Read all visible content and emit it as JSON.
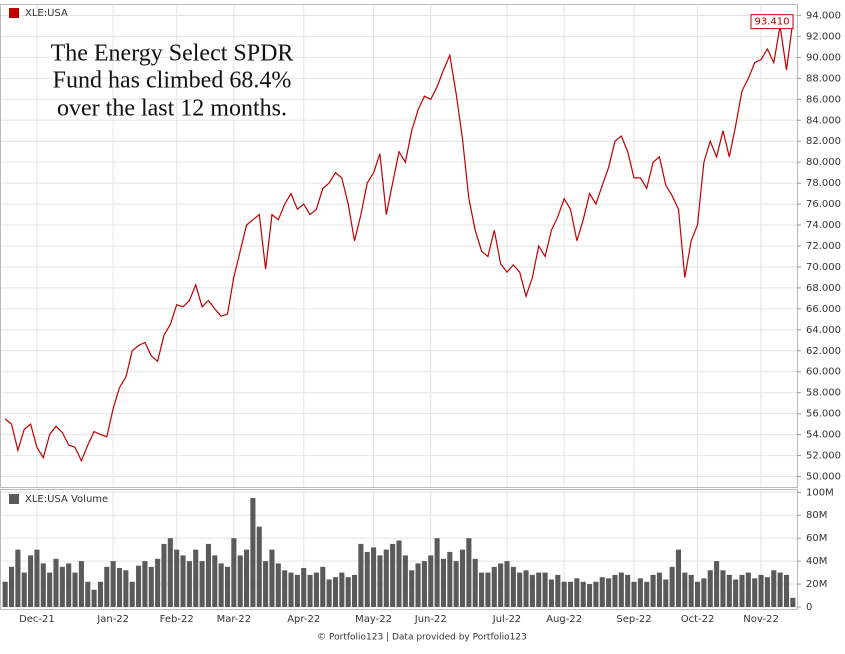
{
  "chart_data": [
    {
      "type": "line",
      "legend": "XLE:USA",
      "annotation": [
        "The Energy Select SPDR",
        "Fund has climbed 68.4%",
        "over the last 12 months."
      ],
      "series": [
        {
          "name": "XLE:USA",
          "color": "#c00000",
          "values": [
            55.5,
            55,
            52.5,
            54.5,
            55,
            52.8,
            51.8,
            54,
            54.8,
            54.2,
            53,
            52.8,
            51.5,
            53,
            54.3,
            54,
            53.8,
            56.5,
            58.5,
            59.5,
            62,
            62.5,
            62.8,
            61.5,
            61,
            63.5,
            64.5,
            66.4,
            66.2,
            66.8,
            68.3,
            66.2,
            66.8,
            66,
            65.3,
            65.5,
            69,
            71.5,
            74,
            74.5,
            75,
            69.8,
            75,
            74.5,
            76,
            77,
            75.5,
            76,
            75,
            75.5,
            77.5,
            78,
            79,
            78.5,
            76,
            72.5,
            75,
            78,
            79,
            80.8,
            75,
            78,
            81,
            80,
            83,
            85,
            86.3,
            86,
            87.2,
            88.8,
            90.2,
            86.5,
            82.2,
            76.5,
            73.5,
            71.5,
            71,
            73.5,
            70.3,
            69.5,
            70.2,
            69.5,
            67.2,
            69,
            72,
            71,
            73.5,
            74.8,
            76.5,
            75.5,
            72.5,
            74.5,
            77,
            76,
            77.8,
            79.5,
            82,
            82.5,
            81,
            78.5,
            78.5,
            77.5,
            80,
            80.5,
            77.8,
            76.8,
            75.5,
            69,
            72.5,
            74,
            80,
            82,
            80.5,
            83,
            80.5,
            83.5,
            86.8,
            88,
            89.5,
            89.8,
            90.8,
            89.5,
            93,
            88.8,
            93.41
          ]
        }
      ],
      "last_price": {
        "value": 93.41,
        "label": "93.410"
      },
      "ylim": [
        49,
        95
      ],
      "yticks": [
        {
          "value": 50,
          "label": "50.000"
        },
        {
          "value": 52,
          "label": "52.000"
        },
        {
          "value": 54,
          "label": "54.000"
        },
        {
          "value": 56,
          "label": "56.000"
        },
        {
          "value": 58,
          "label": "58.000"
        },
        {
          "value": 60,
          "label": "60.000"
        },
        {
          "value": 62,
          "label": "62.000"
        },
        {
          "value": 64,
          "label": "64.000"
        },
        {
          "value": 66,
          "label": "66.000"
        },
        {
          "value": 68,
          "label": "68.000"
        },
        {
          "value": 70,
          "label": "70.000"
        },
        {
          "value": 72,
          "label": "72.000"
        },
        {
          "value": 74,
          "label": "74.000"
        },
        {
          "value": 76,
          "label": "76.000"
        },
        {
          "value": 78,
          "label": "78.000"
        },
        {
          "value": 80,
          "label": "80.000"
        },
        {
          "value": 82,
          "label": "82.000"
        },
        {
          "value": 84,
          "label": "84.000"
        },
        {
          "value": 86,
          "label": "86.000"
        },
        {
          "value": 88,
          "label": "88.000"
        },
        {
          "value": 90,
          "label": "90.000"
        },
        {
          "value": 92,
          "label": "92.000"
        },
        {
          "value": 94,
          "label": "94.000"
        }
      ],
      "grid": true
    },
    {
      "type": "bar",
      "legend": "XLE:USA Volume",
      "color": "#5a5a5a",
      "categories": [
        null,
        null,
        null,
        null,
        null,
        "Dec-21",
        null,
        null,
        null,
        null,
        null,
        null,
        null,
        null,
        null,
        null,
        null,
        "Jan-22",
        null,
        null,
        null,
        null,
        null,
        null,
        null,
        null,
        null,
        "Feb-22",
        null,
        null,
        null,
        null,
        null,
        null,
        null,
        null,
        "Mar-22",
        null,
        null,
        null,
        null,
        null,
        null,
        null,
        null,
        null,
        null,
        "Apr-22",
        null,
        null,
        null,
        null,
        null,
        null,
        null,
        null,
        null,
        null,
        "May-22",
        null,
        null,
        null,
        null,
        null,
        null,
        null,
        null,
        "Jun-22",
        null,
        null,
        null,
        null,
        null,
        null,
        null,
        null,
        null,
        null,
        null,
        "Jul-22",
        null,
        null,
        null,
        null,
        null,
        null,
        null,
        null,
        "Aug-22",
        null,
        null,
        null,
        null,
        null,
        null,
        null,
        null,
        null,
        null,
        "Sep-22",
        null,
        null,
        null,
        null,
        null,
        null,
        null,
        null,
        null,
        "Oct-22",
        null,
        null,
        null,
        null,
        null,
        null,
        null,
        null,
        null,
        "Nov-22",
        null,
        null,
        null,
        null,
        null
      ],
      "values": [
        22,
        35,
        50,
        30,
        45,
        50,
        38,
        30,
        42,
        35,
        38,
        30,
        40,
        22,
        15,
        22,
        35,
        40,
        34,
        32,
        22,
        36,
        40,
        35,
        42,
        55,
        60,
        50,
        45,
        40,
        50,
        40,
        55,
        45,
        38,
        35,
        60,
        45,
        50,
        95,
        70,
        40,
        50,
        38,
        32,
        30,
        28,
        34,
        28,
        30,
        35,
        24,
        26,
        30,
        26,
        28,
        55,
        48,
        52,
        45,
        50,
        55,
        58,
        45,
        32,
        38,
        40,
        45,
        60,
        42,
        48,
        40,
        50,
        60,
        42,
        30,
        30,
        35,
        38,
        40,
        35,
        30,
        32,
        28,
        30,
        30,
        24,
        28,
        22,
        22,
        25,
        22,
        20,
        22,
        26,
        25,
        28,
        30,
        28,
        22,
        25,
        22,
        28,
        30,
        24,
        35,
        50,
        30,
        28,
        22,
        25,
        32,
        40,
        32,
        28,
        24,
        28,
        30,
        25,
        28,
        26,
        32,
        30,
        28,
        8
      ],
      "ylim": [
        0,
        102
      ],
      "yticks": [
        0,
        {
          "value": 20,
          "label": "20M"
        },
        {
          "value": 40,
          "label": "40M"
        },
        {
          "value": 60,
          "label": "60M"
        },
        {
          "value": 80,
          "label": "80M"
        },
        {
          "value": 100,
          "label": "100M"
        }
      ],
      "grid": true
    }
  ],
  "footer": "© Portfolio123 | Data provided by Portfolio123"
}
